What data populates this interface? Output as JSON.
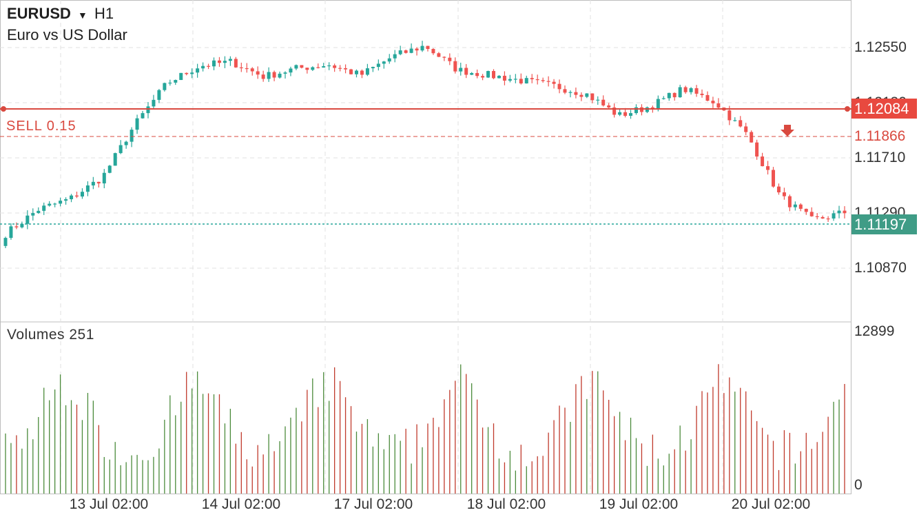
{
  "header": {
    "symbol": "EURUSD",
    "dropdown_arrow": "▼",
    "timeframe": "H1",
    "description": "Euro vs US Dollar"
  },
  "price_axis": {
    "ticks": [
      "1.12550",
      "1.12130",
      "1.11710",
      "1.11290",
      "1.10870"
    ],
    "ylim": [
      1.1045,
      1.1284
    ]
  },
  "price_lines": {
    "position_price": "1.12084",
    "position_label": "SELL 0.15",
    "entry_price": "1.11866",
    "bid_price": "1.11197"
  },
  "volume_pane": {
    "label": "Volumes 251",
    "max_tick": "12899",
    "min_tick": "0"
  },
  "time_axis": {
    "labels": [
      "13 Jul 02:00",
      "14 Jul 02:00",
      "17 Jul 02:00",
      "18 Jul 02:00",
      "19 Jul 02:00",
      "20 Jul 02:00"
    ]
  },
  "colors": {
    "bull": "#26a69a",
    "bear": "#ef5350",
    "vol_up": "#4a8a3a",
    "vol_down": "#c0392b",
    "sell_line": "#d9493f",
    "bid_line": "#26a69a",
    "grid": "#e2e2e2"
  },
  "chart_data": {
    "type": "candlestick",
    "symbol": "EURUSD",
    "timeframe": "H1",
    "x": [
      "13 Jul 02:00",
      "14 Jul 02:00",
      "17 Jul 02:00",
      "18 Jul 02:00",
      "19 Jul 02:00",
      "20 Jul 02:00"
    ],
    "ohlc_anchor_closes": [
      1.111,
      1.1128,
      1.1136,
      1.1152,
      1.1191,
      1.1222,
      1.1235,
      1.1238,
      1.1227,
      1.1233,
      1.1236,
      1.1228,
      1.1242,
      1.125,
      1.1232,
      1.1228,
      1.1224,
      1.122,
      1.1214,
      1.1198,
      1.1205,
      1.1218,
      1.1208,
      1.1183,
      1.1138,
      1.112,
      1.1126
    ],
    "ylim": [
      1.1045,
      1.1284
    ],
    "volume_range": [
      0,
      12899
    ],
    "last_volume": 251
  }
}
